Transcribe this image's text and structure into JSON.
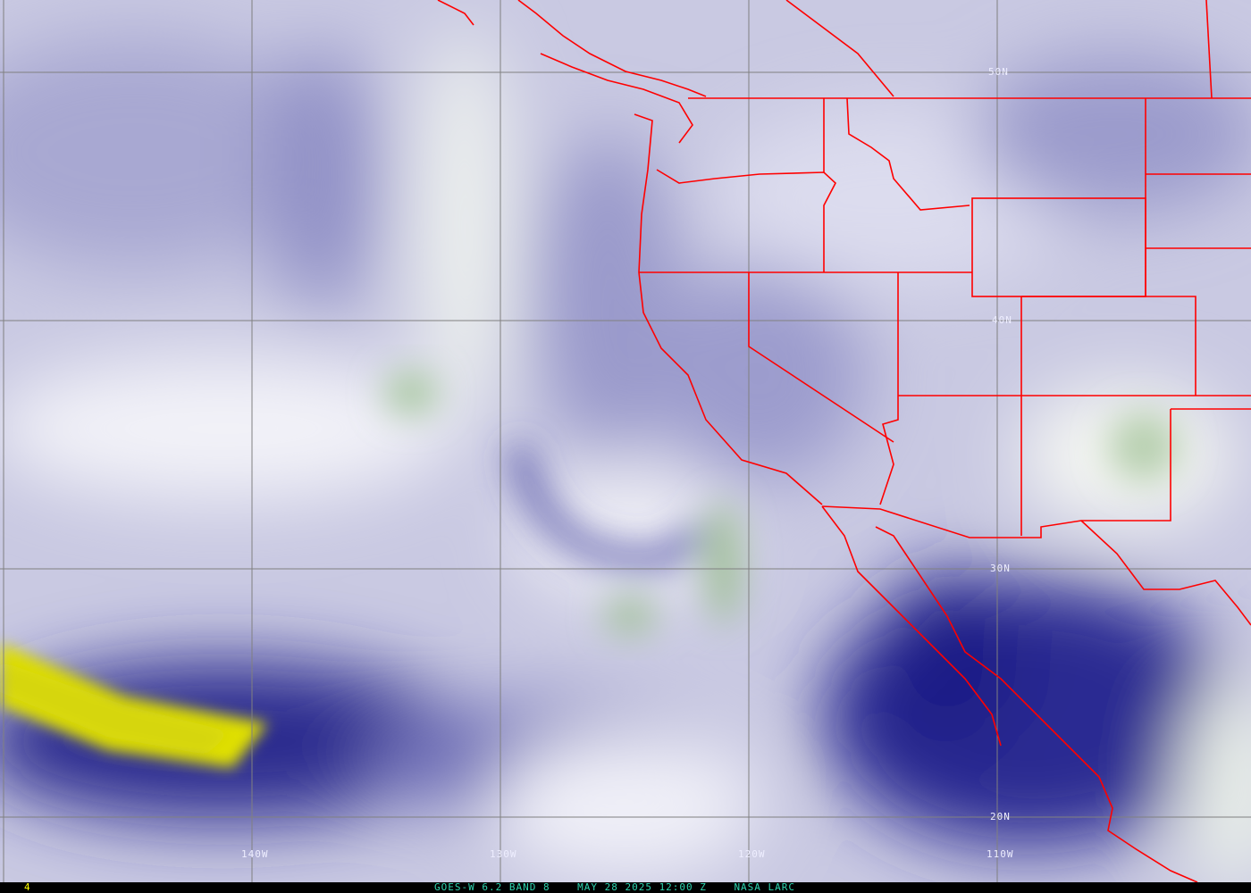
{
  "image": {
    "product": "GOES-W 6.2 BAND 8",
    "timestamp": "MAY 28 2025 12:00 Z",
    "source": "NASA LARC",
    "frame": "4"
  },
  "grid": {
    "latitudes": [
      "50N",
      "40N",
      "30N",
      "20N"
    ],
    "longitudes": [
      "140W",
      "130W",
      "120W",
      "110W"
    ]
  },
  "colors": {
    "border": "#ff0000",
    "grid": "#808080",
    "moist_high": "#d8d820",
    "dry": "#1a1a80",
    "clouds": "#ffffff",
    "caption": "#2fd5b0",
    "frame": "#ffff00"
  }
}
